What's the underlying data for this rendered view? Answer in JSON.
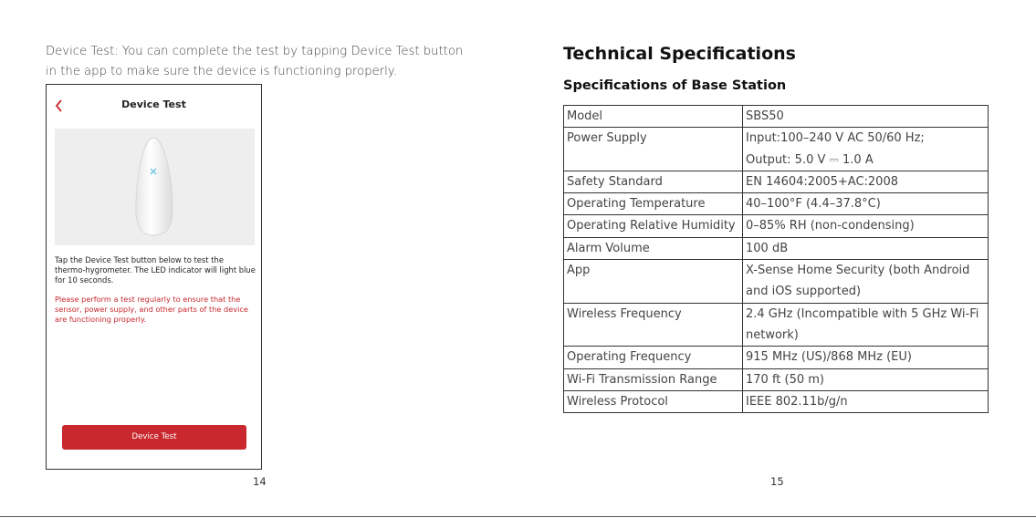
{
  "left": {
    "intro": "Device Test: You can complete the test by tapping Device Test button in the app to make sure the device is functioning properly.",
    "screenshot": {
      "title": "Device Test",
      "instruction": "Tap the Device Test button below to test the thermo-hygrometer. The LED indicator will light blue for 10 seconds.",
      "warning": "Please perform a test regularly to ensure that the sensor, power supply, and other parts of the device are functioning properly.",
      "button": "Device Test"
    },
    "page_number": "14"
  },
  "right": {
    "title": "Technical Specifications",
    "subtitle": "Specifications of Base Station",
    "table": {
      "rows": [
        [
          "Model",
          [
            "SBS50"
          ]
        ],
        [
          "Power Supply",
          [
            "Input:100–240 V AC 50/60 Hz;",
            "Output: 5.0 V ⎓ 1.0 A"
          ]
        ],
        [
          "Safety Standard",
          [
            "EN 14604:2005+AC:2008"
          ]
        ],
        [
          "Operating Temperature",
          [
            "40–100°F (4.4–37.8°C)"
          ]
        ],
        [
          "Operating Relative Humidity",
          [
            "0–85% RH (non-condensing)"
          ]
        ],
        [
          "Alarm Volume",
          [
            "100 dB"
          ]
        ],
        [
          "App",
          [
            "X-Sense Home Security (both Android",
            "and iOS supported)"
          ]
        ],
        [
          "Wireless Frequency",
          [
            "2.4 GHz (Incompatible with 5 GHz Wi-Fi",
            "network)"
          ]
        ],
        [
          "Operating Frequency",
          [
            "915 MHz (US)/868 MHz (EU)"
          ]
        ],
        [
          "Wi-Fi Transmission Range",
          [
            "170 ft (50 m)"
          ]
        ],
        [
          "Wireless Protocol",
          [
            "IEEE 802.11b/g/n"
          ]
        ]
      ]
    },
    "page_number": "15"
  }
}
